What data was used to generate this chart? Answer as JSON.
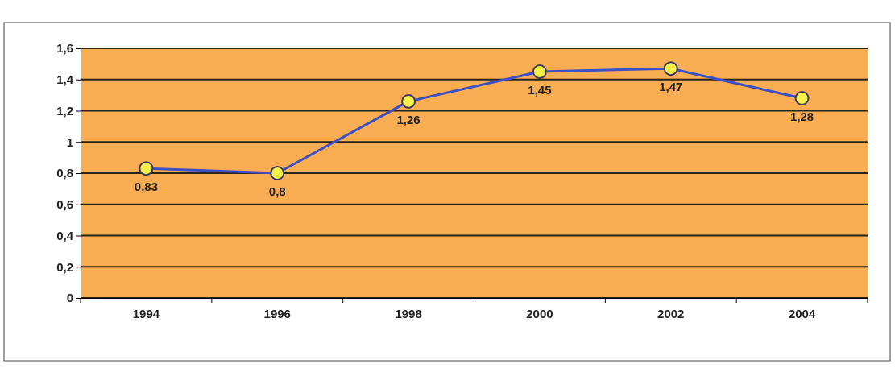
{
  "chart_data": {
    "type": "line",
    "categories": [
      "1994",
      "1996",
      "1998",
      "2000",
      "2002",
      "2004"
    ],
    "series": [
      {
        "color": "#3d4fc4",
        "values": [
          0.83,
          0.8,
          1.26,
          1.45,
          1.47,
          1.28
        ],
        "value_labels": [
          "0,83",
          "0,8",
          "1,26",
          "1,45",
          "1,47",
          "1,28"
        ]
      }
    ],
    "ylim": [
      0,
      1.6
    ],
    "yticks": [
      0,
      {
        "value": 0.2,
        "label": "0,2"
      },
      {
        "value": 0.4,
        "label": "0,4"
      },
      {
        "value": 0.6,
        "label": "0,6"
      },
      {
        "value": 0.8,
        "label": "0,8"
      },
      1,
      {
        "value": 1.2,
        "label": "1,2"
      },
      {
        "value": 1.4,
        "label": "1,4"
      },
      {
        "value": 1.6,
        "label": "1,6"
      }
    ],
    "grid": "y",
    "marker": "circle",
    "line_style": "solid"
  }
}
